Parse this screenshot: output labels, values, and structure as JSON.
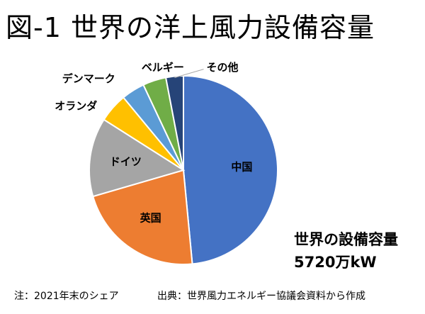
{
  "page": {
    "title": "図-1 世界の洋上風力設備容量",
    "capacity_label": "世界の設備容量",
    "capacity_value": "5720万kW",
    "footnote": "注：2021年末のシェア",
    "source": "出典：世界風力エネルギー協議会資料から作成"
  },
  "chart_data": {
    "type": "pie",
    "title": "図-1 世界の洋上風力設備容量",
    "slices": [
      {
        "label": "中国",
        "value": 48.5,
        "color": "#4472c4"
      },
      {
        "label": "英国",
        "value": 22.0,
        "color": "#ed7d31"
      },
      {
        "label": "ドイツ",
        "value": 13.5,
        "color": "#a5a5a5"
      },
      {
        "label": "オランダ",
        "value": 5.0,
        "color": "#ffc000"
      },
      {
        "label": "デンマーク",
        "value": 4.0,
        "color": "#5b9bd5"
      },
      {
        "label": "ベルギー",
        "value": 4.0,
        "color": "#70ad47"
      },
      {
        "label": "その他",
        "value": 3.0,
        "color": "#264478"
      }
    ],
    "start_angle_deg": 0,
    "direction": "clockwise",
    "legend": "none (labels on and outside slices)"
  }
}
